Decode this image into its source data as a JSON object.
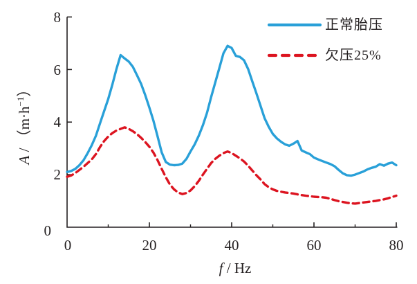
{
  "figure": {
    "background": "#ffffff",
    "axis_color": "#231f20",
    "text_color": "#231f20"
  },
  "chart_data": {
    "type": "line",
    "title": "",
    "xlabel_var": "f",
    "xlabel_unit": " / Hz",
    "ylabel_var": "A",
    "ylabel_unit_prefix": " / （m·h",
    "ylabel_superscript": "−1",
    "ylabel_unit_suffix": "）",
    "xlim": [
      0,
      80
    ],
    "ylim": [
      0,
      8
    ],
    "grid": false,
    "legend_position": "top-right",
    "x_major_ticks": [
      0,
      20,
      40,
      60,
      80
    ],
    "x_minor_ticks": [
      10,
      30,
      50,
      70
    ],
    "y_major_ticks": [
      0,
      2,
      4,
      6,
      8
    ],
    "x_tick_labels": [
      "0",
      "20",
      "40",
      "60",
      "80"
    ],
    "y_tick_labels_top_to_bottom": [
      "8",
      "6",
      "4",
      "2",
      "0"
    ],
    "x_start": 0,
    "x_step": 1,
    "series": [
      {
        "key": "normal-tire-pressure",
        "name": "正常胎压",
        "color": "#29A0D8",
        "line_style": "solid",
        "values": [
          2.1,
          2.14,
          2.22,
          2.36,
          2.55,
          2.82,
          3.12,
          3.48,
          3.95,
          4.42,
          4.88,
          5.42,
          6.02,
          6.55,
          6.42,
          6.3,
          6.1,
          5.78,
          5.45,
          5.02,
          4.55,
          4.05,
          3.45,
          2.85,
          2.48,
          2.38,
          2.36,
          2.37,
          2.42,
          2.6,
          2.88,
          3.15,
          3.48,
          3.88,
          4.35,
          4.95,
          5.5,
          6.05,
          6.62,
          6.9,
          6.82,
          6.52,
          6.48,
          6.35,
          6.02,
          5.55,
          5.1,
          4.62,
          4.15,
          3.82,
          3.55,
          3.38,
          3.25,
          3.15,
          3.1,
          3.18,
          3.28,
          2.92,
          2.85,
          2.78,
          2.65,
          2.58,
          2.52,
          2.46,
          2.4,
          2.32,
          2.18,
          2.05,
          1.98,
          1.96,
          2.0,
          2.06,
          2.12,
          2.2,
          2.26,
          2.3,
          2.4,
          2.34,
          2.42,
          2.46,
          2.36
        ]
      },
      {
        "key": "under-pressure-25",
        "name": "欠压25%",
        "color": "#DC1420",
        "line_style": "dashed",
        "values": [
          1.92,
          1.97,
          2.06,
          2.18,
          2.3,
          2.44,
          2.58,
          2.78,
          3.05,
          3.28,
          3.45,
          3.58,
          3.68,
          3.74,
          3.8,
          3.74,
          3.65,
          3.54,
          3.4,
          3.24,
          3.06,
          2.84,
          2.55,
          2.22,
          1.9,
          1.62,
          1.44,
          1.32,
          1.26,
          1.3,
          1.4,
          1.56,
          1.76,
          2.0,
          2.22,
          2.44,
          2.6,
          2.72,
          2.82,
          2.88,
          2.82,
          2.72,
          2.62,
          2.5,
          2.34,
          2.16,
          1.98,
          1.82,
          1.64,
          1.52,
          1.44,
          1.38,
          1.35,
          1.32,
          1.3,
          1.28,
          1.25,
          1.22,
          1.2,
          1.18,
          1.16,
          1.15,
          1.14,
          1.12,
          1.08,
          1.03,
          0.99,
          0.96,
          0.93,
          0.91,
          0.9,
          0.92,
          0.94,
          0.96,
          0.98,
          1.0,
          1.03,
          1.06,
          1.1,
          1.15,
          1.2
        ]
      }
    ]
  }
}
